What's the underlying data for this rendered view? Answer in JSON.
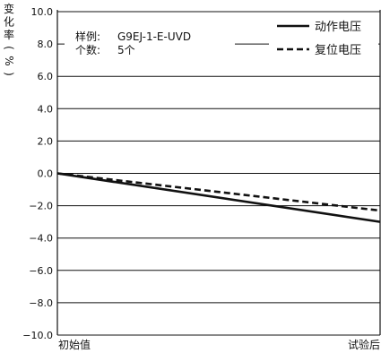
{
  "chart_data": {
    "type": "line",
    "ylabel": "变化率(%)",
    "x": [
      "初始值",
      "试验后"
    ],
    "ylim": [
      -10.0,
      10.0
    ],
    "yticks": [
      "10.0",
      "8.0",
      "6.0",
      "4.0",
      "2.0",
      "0.0",
      "−2.0",
      "−4.0",
      "−6.0",
      "−8.0",
      "−10.0"
    ],
    "ytick_values": [
      10,
      8,
      6,
      4,
      2,
      0,
      -2,
      -4,
      -6,
      -8,
      -10
    ],
    "grid": true,
    "legend_position": "top-right",
    "series": [
      {
        "name": "动作电压",
        "style": "solid",
        "values": [
          0.0,
          -3.0
        ]
      },
      {
        "name": "复位电压",
        "style": "dashed",
        "values": [
          0.0,
          -2.3
        ]
      }
    ],
    "annotation": {
      "sample_label": "样例:",
      "sample_value": "G9EJ-1-E-UVD",
      "count_label": "个数:",
      "count_value": "5个"
    }
  }
}
